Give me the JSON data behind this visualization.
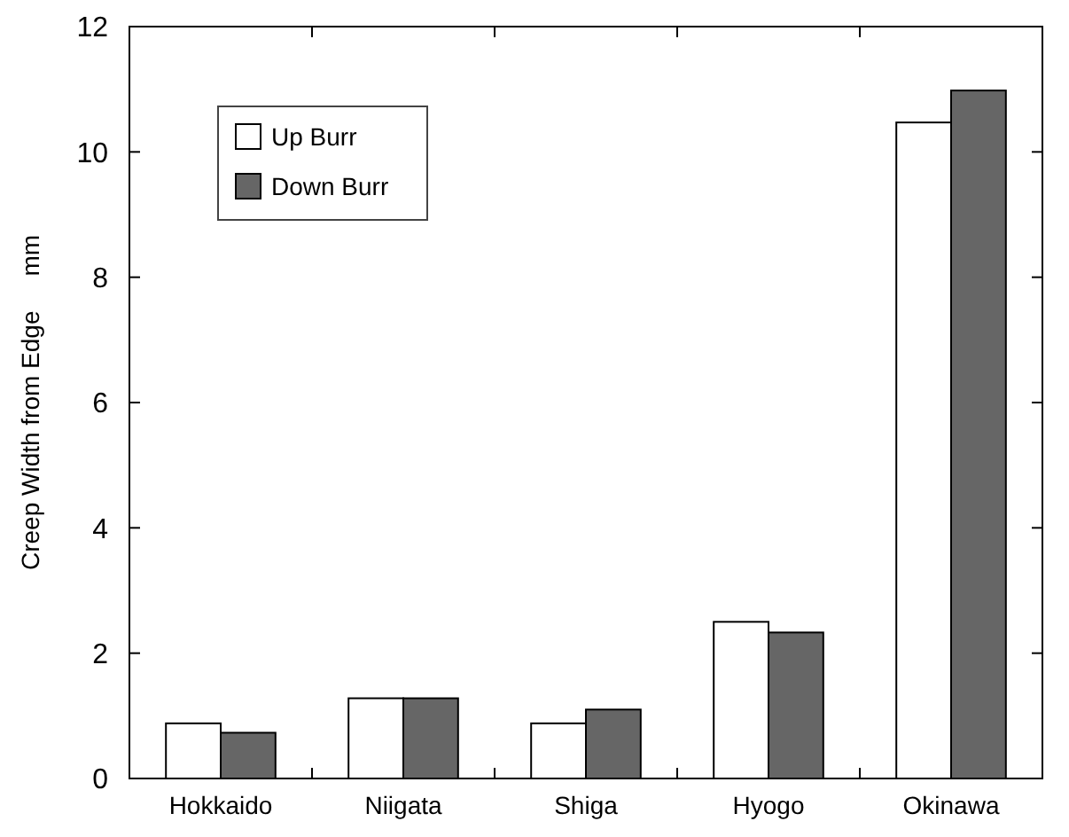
{
  "chart_data": {
    "type": "bar",
    "ylabel": "Creep Width from Edge     mm",
    "categories": [
      "Hokkaido",
      "Niigata",
      "Shiga",
      "Hyogo",
      "Okinawa"
    ],
    "series": [
      {
        "name": "Up Burr",
        "color": "#ffffff",
        "values": [
          0.88,
          1.28,
          0.88,
          2.5,
          10.47
        ]
      },
      {
        "name": "Down Burr",
        "color": "#666666",
        "values": [
          0.73,
          1.28,
          1.1,
          2.33,
          10.98
        ]
      }
    ],
    "ylim": [
      0,
      12
    ],
    "yticks": [
      0,
      2,
      4,
      6,
      8,
      10,
      12
    ],
    "grid": false,
    "legend": "top left"
  }
}
